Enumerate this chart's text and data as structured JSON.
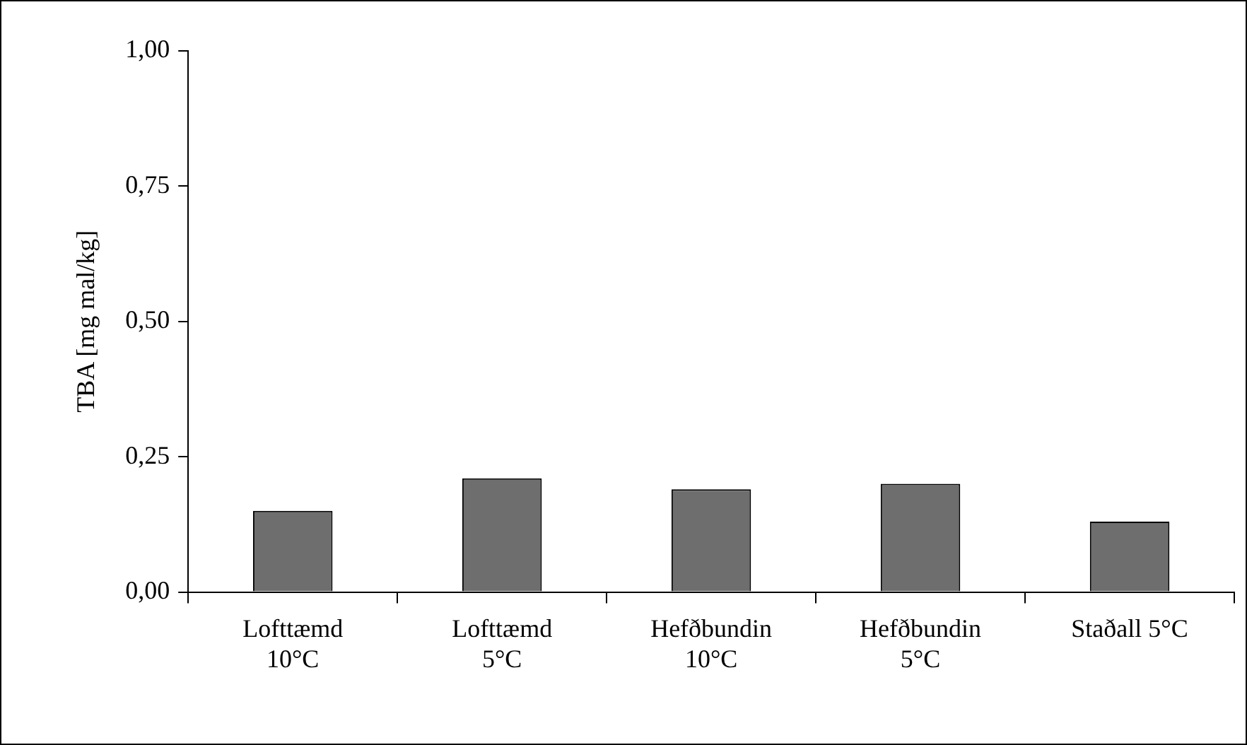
{
  "chart_data": {
    "type": "bar",
    "ylabel": "TBA [mg mal/kg]",
    "categories": [
      "Lofttæmd\n10°C",
      "Lofttæmd\n5°C",
      "Hefðbundin\n10°C",
      "Hefðbundin\n5°C",
      "Staðall 5°C"
    ],
    "values": [
      0.15,
      0.21,
      0.19,
      0.2,
      0.13
    ],
    "color": "#6e6e6e",
    "ylim": [
      0,
      1
    ],
    "yticks": [
      {
        "value": 0,
        "label": "0,00"
      },
      {
        "value": 0.25,
        "label": "0,25"
      },
      {
        "value": 0.5,
        "label": "0,50"
      },
      {
        "value": 0.75,
        "label": "0,75"
      },
      {
        "value": 1,
        "label": "1,00"
      }
    ],
    "grid": false,
    "legend": false
  }
}
